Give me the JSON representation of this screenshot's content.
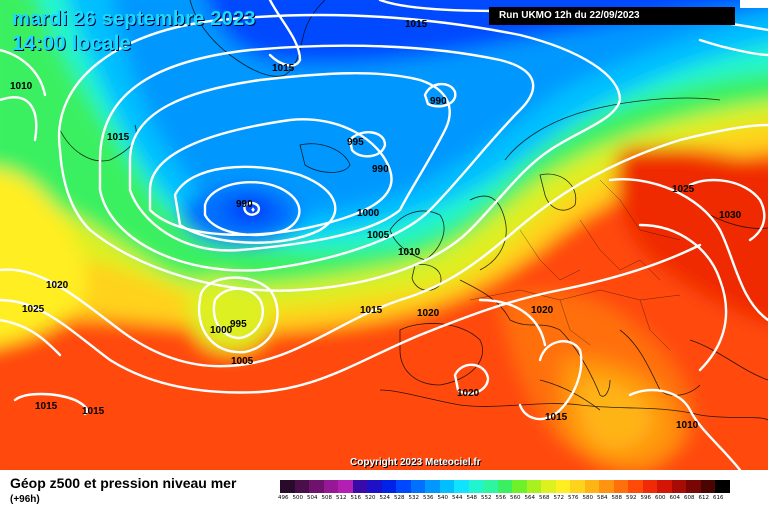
{
  "header": {
    "date": "mardi 26 septembre 2023",
    "time": "14:00 locale",
    "run": "Run UKMO 12h du 22/09/2023"
  },
  "copyright": "Copyright 2023 Meteociel.fr",
  "legend": {
    "title": "Géop z500 et pression niveau mer",
    "subtitle": "(+96h)",
    "scale": [
      {
        "label": "496",
        "color": "#2a0a2a"
      },
      {
        "label": "500",
        "color": "#4a0f4a"
      },
      {
        "label": "504",
        "color": "#6e126e"
      },
      {
        "label": "508",
        "color": "#951895"
      },
      {
        "label": "512",
        "color": "#b21fb2"
      },
      {
        "label": "516",
        "color": "#3a0aa8"
      },
      {
        "label": "520",
        "color": "#1d10c8"
      },
      {
        "label": "524",
        "color": "#0022e6"
      },
      {
        "label": "528",
        "color": "#0048ff"
      },
      {
        "label": "532",
        "color": "#0070ff"
      },
      {
        "label": "536",
        "color": "#0098ff"
      },
      {
        "label": "540",
        "color": "#00bfff"
      },
      {
        "label": "544",
        "color": "#10e3ff"
      },
      {
        "label": "548",
        "color": "#20f5d0"
      },
      {
        "label": "552",
        "color": "#2ef5a0"
      },
      {
        "label": "556",
        "color": "#3bf060"
      },
      {
        "label": "560",
        "color": "#6ef02a"
      },
      {
        "label": "564",
        "color": "#a8f01e"
      },
      {
        "label": "568",
        "color": "#ddf020"
      },
      {
        "label": "572",
        "color": "#ffee22"
      },
      {
        "label": "576",
        "color": "#ffd21c"
      },
      {
        "label": "580",
        "color": "#ffb416"
      },
      {
        "label": "584",
        "color": "#ff9410"
      },
      {
        "label": "588",
        "color": "#ff700c"
      },
      {
        "label": "592",
        "color": "#ff4a08"
      },
      {
        "label": "596",
        "color": "#f02a06"
      },
      {
        "label": "600",
        "color": "#d41404"
      },
      {
        "label": "604",
        "color": "#a60c04"
      },
      {
        "label": "608",
        "color": "#7a0604"
      },
      {
        "label": "612",
        "color": "#4a0402"
      },
      {
        "label": "616",
        "color": "#000000"
      }
    ]
  },
  "isobar_labels": [
    {
      "text": "1015"
    },
    {
      "text": "1015"
    },
    {
      "text": "1010"
    },
    {
      "text": "990"
    },
    {
      "text": "1015"
    },
    {
      "text": "995"
    },
    {
      "text": "990"
    },
    {
      "text": "990"
    },
    {
      "text": "1025"
    },
    {
      "text": "1030"
    },
    {
      "text": "1000"
    },
    {
      "text": "1005"
    },
    {
      "text": "1010"
    },
    {
      "text": "1020"
    },
    {
      "text": "1025"
    },
    {
      "text": "1015"
    },
    {
      "text": "1020"
    },
    {
      "text": "1020"
    },
    {
      "text": "1000"
    },
    {
      "text": "995"
    },
    {
      "text": "1005"
    },
    {
      "text": "1020"
    },
    {
      "text": "1015"
    },
    {
      "text": "1015"
    },
    {
      "text": "1015"
    },
    {
      "text": "1010"
    }
  ]
}
